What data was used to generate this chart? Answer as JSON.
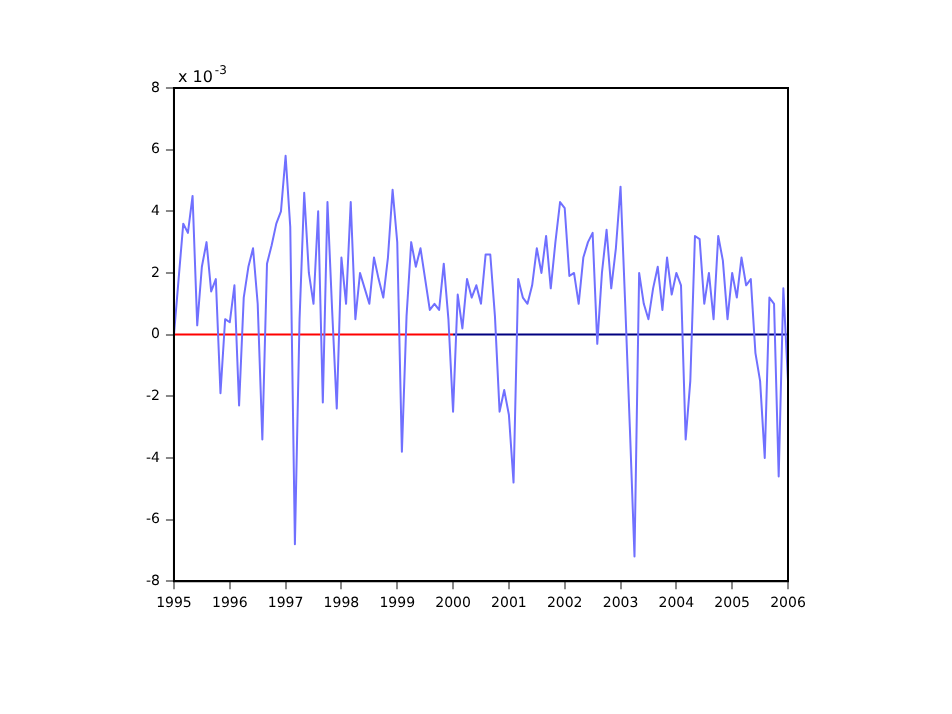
{
  "chart_data": {
    "type": "line",
    "annotations": [
      "x 10$^{-3}$"
    ],
    "xlim": [
      "1995",
      "2006"
    ],
    "xticks": [
      "1995",
      "1996",
      "1997",
      "1998",
      "1999",
      "2000",
      "2001",
      "2002",
      "2003",
      "2004",
      "2005",
      "2006"
    ],
    "ylim": [
      -8,
      8
    ],
    "yticks": [
      -8,
      -6,
      -4,
      -2,
      0,
      2,
      4,
      6,
      8
    ],
    "grid": false,
    "legend": false,
    "marker": "none",
    "line_style": "solid",
    "series": [
      {
        "color": "#7070ff",
        "x": [
          "1995-01",
          "1995-02",
          "1995-03",
          "1995-04",
          "1995-05",
          "1995-06",
          "1995-07",
          "1995-08",
          "1995-09",
          "1995-10",
          "1995-11",
          "1995-12",
          "1996-01",
          "1996-02",
          "1996-03",
          "1996-04",
          "1996-05",
          "1996-06",
          "1996-07",
          "1996-08",
          "1996-09",
          "1996-10",
          "1996-11",
          "1996-12",
          "1997-01",
          "1997-02",
          "1997-03",
          "1997-04",
          "1997-05",
          "1997-06",
          "1997-07",
          "1997-08",
          "1997-09",
          "1997-10",
          "1997-11",
          "1997-12",
          "1998-01",
          "1998-02",
          "1998-03",
          "1998-04",
          "1998-05",
          "1998-06",
          "1998-07",
          "1998-08",
          "1998-09",
          "1998-10",
          "1998-11",
          "1998-12",
          "1999-01",
          "1999-02",
          "1999-03",
          "1999-04",
          "1999-05",
          "1999-06",
          "1999-07",
          "1999-08",
          "1999-09",
          "1999-10",
          "1999-11",
          "1999-12",
          "2000-01",
          "2000-02",
          "2000-03",
          "2000-04",
          "2000-05",
          "2000-06",
          "2000-07",
          "2000-08",
          "2000-09",
          "2000-10",
          "2000-11",
          "2000-12",
          "2001-01",
          "2001-02",
          "2001-03",
          "2001-04",
          "2001-05",
          "2001-06",
          "2001-07",
          "2001-08",
          "2001-09",
          "2001-10",
          "2001-11",
          "2001-12",
          "2002-01",
          "2002-02",
          "2002-03",
          "2002-04",
          "2002-05",
          "2002-06",
          "2002-07",
          "2002-08",
          "2002-09",
          "2002-10",
          "2002-11",
          "2002-12",
          "2003-01",
          "2003-02",
          "2003-03",
          "2003-04",
          "2003-05",
          "2003-06",
          "2003-07",
          "2003-08",
          "2003-09",
          "2003-10",
          "2003-11",
          "2003-12",
          "2004-01",
          "2004-02",
          "2004-03",
          "2004-04",
          "2004-05",
          "2004-06",
          "2004-07",
          "2004-08",
          "2004-09",
          "2004-10",
          "2004-11",
          "2004-12",
          "2005-01",
          "2005-02",
          "2005-03",
          "2005-04",
          "2005-05",
          "2005-06",
          "2005-07",
          "2005-08",
          "2005-09",
          "2005-10",
          "2005-11",
          "2005-12",
          "2006-01"
        ],
        "values": [
          0,
          1.8,
          3.6,
          3.3,
          4.5,
          0.3,
          2.2,
          3.0,
          1.4,
          1.8,
          -1.9,
          0.5,
          0.4,
          1.6,
          -2.3,
          1.2,
          2.2,
          2.8,
          1.0,
          -3.4,
          2.3,
          2.9,
          3.6,
          4.0,
          5.8,
          3.5,
          -6.8,
          0.5,
          4.6,
          2.0,
          1.0,
          4.0,
          -2.2,
          4.3,
          0.8,
          -2.4,
          2.5,
          1.0,
          4.3,
          0.5,
          2.0,
          1.5,
          1.0,
          2.5,
          1.8,
          1.2,
          2.5,
          4.7,
          3.0,
          -3.8,
          0.6,
          3.0,
          2.2,
          2.8,
          1.8,
          0.8,
          1.0,
          0.8,
          2.3,
          0.5,
          -2.5,
          1.3,
          0.2,
          1.8,
          1.2,
          1.6,
          1.0,
          2.6,
          2.6,
          0.6,
          -2.5,
          -1.8,
          -2.6,
          -4.8,
          1.8,
          1.2,
          1.0,
          1.6,
          2.8,
          2.0,
          3.2,
          1.5,
          3.0,
          4.3,
          4.1,
          1.9,
          2.0,
          1.0,
          2.5,
          3.0,
          3.3,
          -0.3,
          2.0,
          3.4,
          1.5,
          2.8,
          4.8,
          1.0,
          -3.0,
          -7.2,
          2.0,
          1.0,
          0.5,
          1.5,
          2.2,
          0.8,
          2.5,
          1.3,
          2.0,
          1.6,
          -3.4,
          -1.5,
          3.2,
          3.1,
          1.0,
          2.0,
          0.5,
          3.2,
          2.4,
          0.5,
          2.0,
          1.2,
          2.5,
          1.6,
          1.8,
          -0.6,
          -1.5,
          -4.0,
          1.2,
          1.0,
          -4.6,
          1.5,
          -1.5
        ]
      },
      {
        "color": "#ff0000",
        "x": [
          "1995-01",
          "2000-01"
        ],
        "values": [
          0,
          0
        ]
      },
      {
        "color": "#000080",
        "x": [
          "2000-01",
          "2006-01"
        ],
        "values": [
          0,
          0
        ]
      }
    ]
  }
}
